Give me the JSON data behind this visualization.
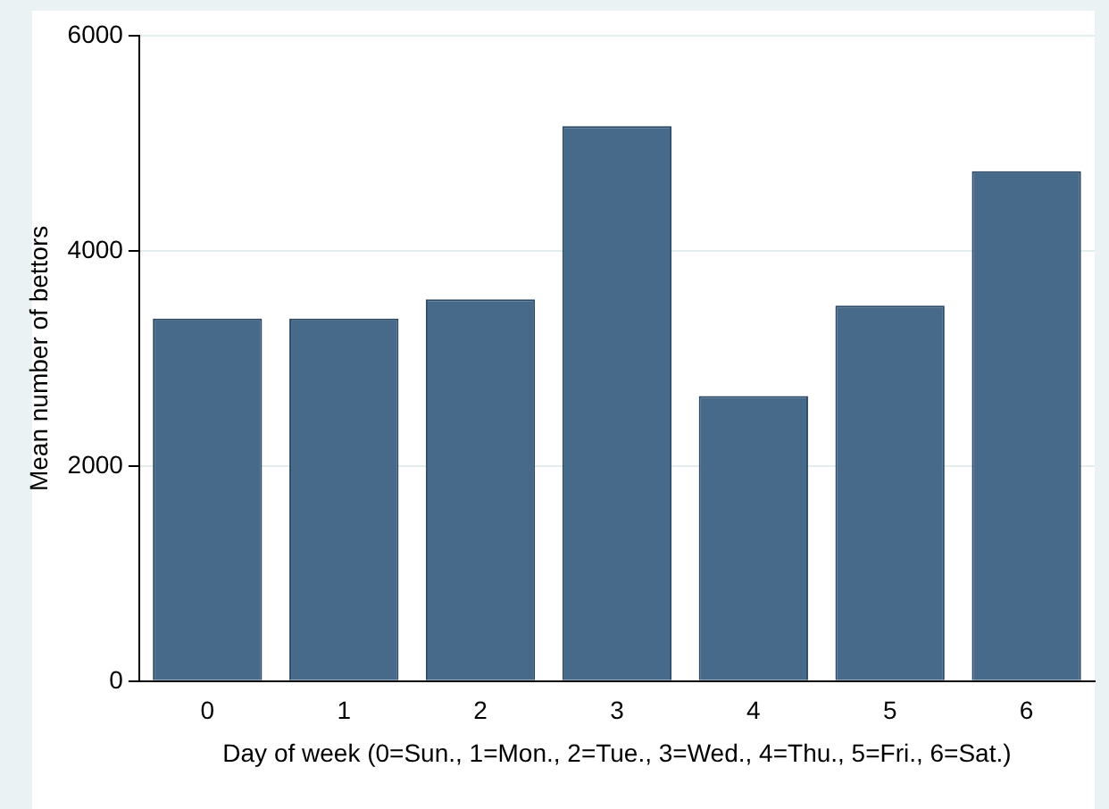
{
  "chart_data": {
    "type": "bar",
    "xlabel": "Day of week (0=Sun., 1=Mon., 2=Tue., 3=Wed., 4=Thu., 5=Fri., 6=Sat.)",
    "ylabel": "Mean number of bettors",
    "categories": [
      "0",
      "1",
      "2",
      "3",
      "4",
      "5",
      "6"
    ],
    "values": [
      3370,
      3370,
      3550,
      5160,
      2650,
      3490,
      4740
    ],
    "color": "#476a8a",
    "ylim": [
      0,
      6000
    ],
    "yticks": [
      0,
      2000,
      4000,
      6000
    ],
    "grid": "y"
  }
}
